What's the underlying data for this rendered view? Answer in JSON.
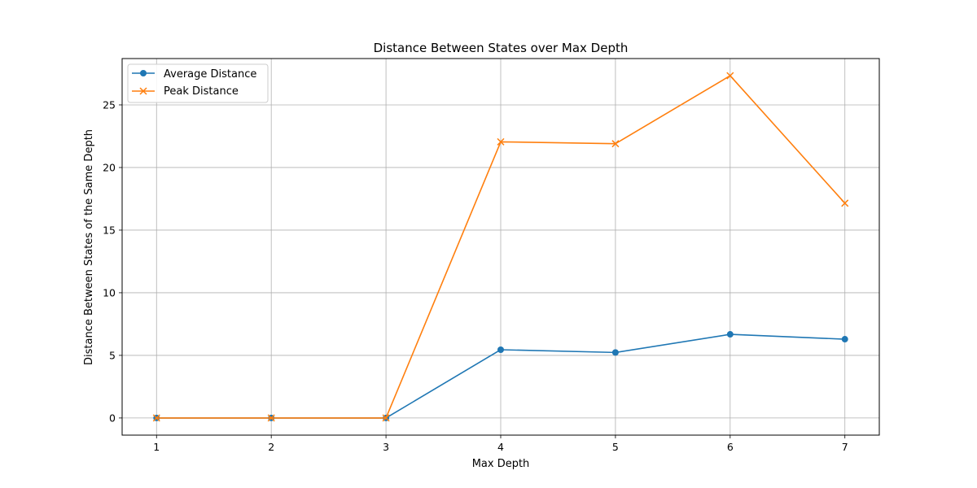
{
  "chart_data": {
    "type": "line",
    "title": "Distance Between States over Max Depth",
    "xlabel": "Max Depth",
    "ylabel": "Distance Between States of the Same Depth",
    "x": [
      1,
      2,
      3,
      4,
      5,
      6,
      7
    ],
    "xlim": [
      0.7,
      7.3
    ],
    "ylim": [
      -1.37,
      28.7
    ],
    "xticks": [
      "1",
      "2",
      "3",
      "4",
      "5",
      "6",
      "7"
    ],
    "yticks": [
      0,
      5,
      10,
      15,
      20,
      25
    ],
    "grid": true,
    "legend_position": "top-left",
    "series": [
      {
        "name": "Average Distance",
        "values": [
          0,
          0,
          0,
          5.45,
          5.23,
          6.68,
          6.29
        ],
        "color": "#1f77b4",
        "marker": "circle"
      },
      {
        "name": "Peak Distance",
        "values": [
          0,
          0,
          0,
          22.05,
          21.9,
          27.33,
          17.15
        ],
        "color": "#ff7f0e",
        "marker": "x"
      }
    ]
  }
}
